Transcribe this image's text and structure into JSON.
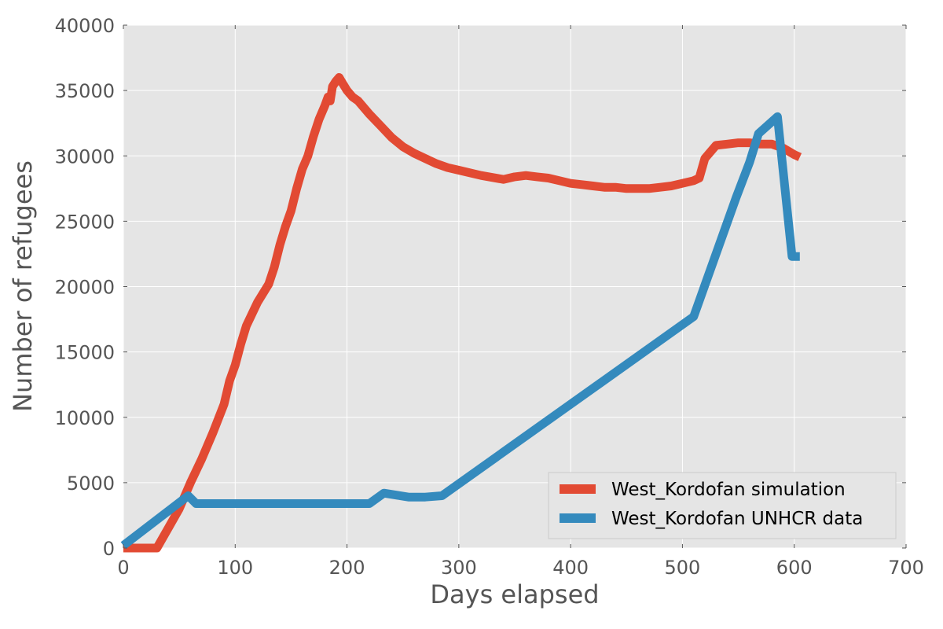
{
  "chart_data": {
    "type": "line",
    "xlabel": "Days elapsed",
    "ylabel": "Number of refugees",
    "xlim": [
      0,
      700
    ],
    "ylim": [
      0,
      40000
    ],
    "x_ticks": [
      0,
      100,
      200,
      300,
      400,
      500,
      600,
      700
    ],
    "y_ticks": [
      0,
      5000,
      10000,
      15000,
      20000,
      25000,
      30000,
      35000,
      40000
    ],
    "grid": true,
    "legend_position": "lower-right",
    "colors": {
      "plot_background": "#e5e5e5",
      "grid": "#ffffff"
    },
    "series": [
      {
        "name": "West_Kordofan simulation",
        "color": "#e24a33",
        "x": [
          0,
          10,
          20,
          30,
          40,
          50,
          60,
          70,
          80,
          90,
          95,
          100,
          105,
          110,
          120,
          130,
          135,
          140,
          145,
          150,
          155,
          160,
          165,
          170,
          175,
          180,
          183,
          185,
          187,
          190,
          193,
          195,
          200,
          205,
          210,
          220,
          230,
          240,
          250,
          260,
          270,
          280,
          290,
          300,
          320,
          340,
          350,
          360,
          370,
          380,
          390,
          400,
          410,
          420,
          430,
          440,
          450,
          460,
          470,
          480,
          490,
          500,
          510,
          515,
          520,
          530,
          540,
          550,
          560,
          570,
          580,
          590,
          600,
          605
        ],
        "y": [
          0,
          0,
          0,
          0,
          1500,
          3000,
          5000,
          6800,
          8800,
          11000,
          12800,
          14000,
          15600,
          17000,
          18800,
          20200,
          21500,
          23200,
          24600,
          25800,
          27500,
          29000,
          30000,
          31500,
          32800,
          33800,
          34500,
          34200,
          35300,
          35700,
          36000,
          35700,
          35000,
          34500,
          34200,
          33200,
          32300,
          31400,
          30700,
          30200,
          29800,
          29400,
          29100,
          28900,
          28500,
          28200,
          28400,
          28500,
          28400,
          28300,
          28100,
          27900,
          27800,
          27700,
          27600,
          27600,
          27500,
          27500,
          27500,
          27600,
          27700,
          27900,
          28100,
          28300,
          29800,
          30800,
          30900,
          31000,
          31000,
          30900,
          30900,
          30600,
          30100,
          29900
        ]
      },
      {
        "name": "West_Kordofan UNHCR data",
        "color": "#348abd",
        "x": [
          0,
          58,
          65,
          220,
          233,
          255,
          270,
          285,
          510,
          548,
          560,
          568,
          585,
          598,
          605
        ],
        "y": [
          200,
          4000,
          3400,
          3400,
          4200,
          3900,
          3900,
          4000,
          17700,
          26800,
          29500,
          31700,
          33000,
          22300,
          22300
        ]
      }
    ]
  }
}
